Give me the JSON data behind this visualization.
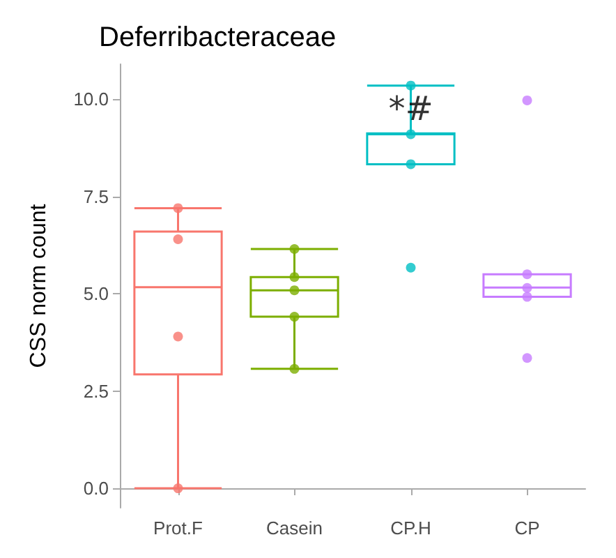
{
  "chart_data": {
    "type": "box",
    "title": "Deferribacteraceae",
    "ylabel": "CSS norm count",
    "categories": [
      "Prot.F",
      "Casein",
      "CP.H",
      "CP"
    ],
    "colors": [
      "#f8766d",
      "#7cae00",
      "#00bfc4",
      "#c77cff"
    ],
    "boxes": [
      {
        "low": 0,
        "q1": 2.93,
        "median": 5.17,
        "q3": 6.6,
        "high": 7.2
      },
      {
        "low": 3.07,
        "q1": 4.41,
        "median": 5.09,
        "q3": 5.43,
        "high": 6.15
      },
      {
        "low": 8.33,
        "q1": 8.33,
        "median": 9.1,
        "q3": 9.12,
        "high": 10.35
      },
      {
        "low": 4.92,
        "q1": 4.92,
        "median": 5.16,
        "q3": 5.5,
        "high": 5.5
      }
    ],
    "series": [
      {
        "type": "scatter",
        "color": "#f8766d",
        "x": [
          "Prot.F",
          "Prot.F",
          "Prot.F",
          "Prot.F"
        ],
        "values": [
          7.2,
          6.4,
          3.9,
          0
        ]
      },
      {
        "type": "scatter",
        "color": "#7cae00",
        "x": [
          "Casein",
          "Casein",
          "Casein",
          "Casein",
          "Casein"
        ],
        "values": [
          6.15,
          5.43,
          5.09,
          4.41,
          3.07
        ]
      },
      {
        "type": "scatter",
        "color": "#00bfc4",
        "x": [
          "CP.H",
          "CP.H",
          "CP.H",
          "CP.H"
        ],
        "values": [
          10.35,
          9.1,
          8.33,
          5.67
        ]
      },
      {
        "type": "scatter",
        "color": "#c77cff",
        "x": [
          "CP",
          "CP",
          "CP",
          "CP",
          "CP"
        ],
        "values": [
          9.97,
          5.5,
          5.15,
          4.92,
          3.35
        ]
      }
    ],
    "annotations": [
      {
        "text": "*#",
        "x": "CP.H",
        "y": 9.75
      }
    ],
    "ylim": [
      -0.5,
      10.9
    ],
    "yticks": [
      {
        "value": 0,
        "label": "0.0"
      },
      {
        "value": 2.5,
        "label": "2.5"
      },
      {
        "value": 5,
        "label": "5.0"
      },
      {
        "value": 7.5,
        "label": "7.5"
      },
      {
        "value": 10,
        "label": "10.0"
      }
    ],
    "grid": false
  }
}
